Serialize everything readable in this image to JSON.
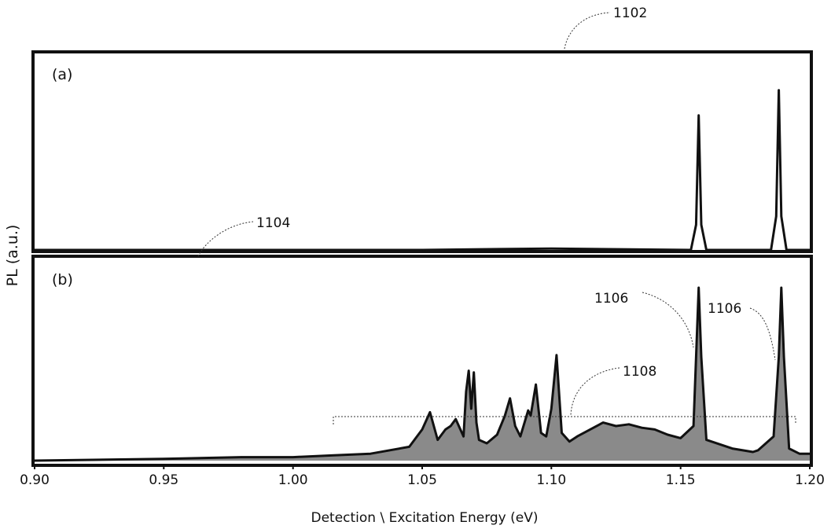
{
  "chart_data": {
    "type": "line",
    "xlabel": "Detection \\ Excitation Energy (eV)",
    "ylabel": "PL (a.u.)",
    "xlim": [
      0.9,
      1.2
    ],
    "x_ticks": [
      "0.90",
      "0.95",
      "1.00",
      "1.05",
      "1.10",
      "1.15",
      "1.20"
    ],
    "grid": false,
    "panels": [
      {
        "label": "(a)",
        "ylim": [
          0,
          1
        ],
        "series": [
          {
            "x": [
              0.9,
              0.95,
              1.0,
              1.05,
              1.08,
              1.1,
              1.154,
              1.156,
              1.157,
              1.158,
              1.16,
              1.185,
              1.187,
              1.188,
              1.189,
              1.191,
              1.2
            ],
            "y": [
              0.0,
              0.0,
              0.0,
              0.0,
              0.005,
              0.008,
              0.0,
              0.15,
              0.8,
              0.15,
              0.0,
              0.0,
              0.2,
              0.95,
              0.2,
              0.0,
              0.0
            ]
          }
        ]
      },
      {
        "label": "(b)",
        "ylim": [
          0,
          1
        ],
        "series": [
          {
            "x": [
              0.9,
              0.95,
              0.98,
              1.0,
              1.015,
              1.03,
              1.045,
              1.05,
              1.053,
              1.056,
              1.059,
              1.061,
              1.063,
              1.066,
              1.067,
              1.068,
              1.069,
              1.07,
              1.071,
              1.072,
              1.075,
              1.079,
              1.082,
              1.084,
              1.086,
              1.088,
              1.09,
              1.091,
              1.092,
              1.094,
              1.096,
              1.098,
              1.1,
              1.102,
              1.104,
              1.107,
              1.11,
              1.115,
              1.12,
              1.125,
              1.13,
              1.135,
              1.14,
              1.145,
              1.15,
              1.155,
              1.156,
              1.157,
              1.158,
              1.16,
              1.17,
              1.178,
              1.18,
              1.186,
              1.188,
              1.189,
              1.19,
              1.192,
              1.196,
              1.2
            ],
            "y": [
              0.0,
              0.01,
              0.02,
              0.02,
              0.03,
              0.04,
              0.08,
              0.18,
              0.28,
              0.12,
              0.18,
              0.2,
              0.24,
              0.14,
              0.4,
              0.52,
              0.3,
              0.51,
              0.22,
              0.12,
              0.1,
              0.15,
              0.26,
              0.36,
              0.2,
              0.14,
              0.24,
              0.29,
              0.26,
              0.44,
              0.16,
              0.14,
              0.3,
              0.61,
              0.16,
              0.11,
              0.14,
              0.18,
              0.22,
              0.2,
              0.21,
              0.19,
              0.18,
              0.15,
              0.13,
              0.2,
              0.6,
              1.0,
              0.6,
              0.12,
              0.07,
              0.05,
              0.06,
              0.14,
              0.6,
              1.0,
              0.6,
              0.07,
              0.04,
              0.04
            ]
          }
        ]
      }
    ],
    "annotations": [
      "1102",
      "1104",
      "1106",
      "1106",
      "1108"
    ]
  }
}
